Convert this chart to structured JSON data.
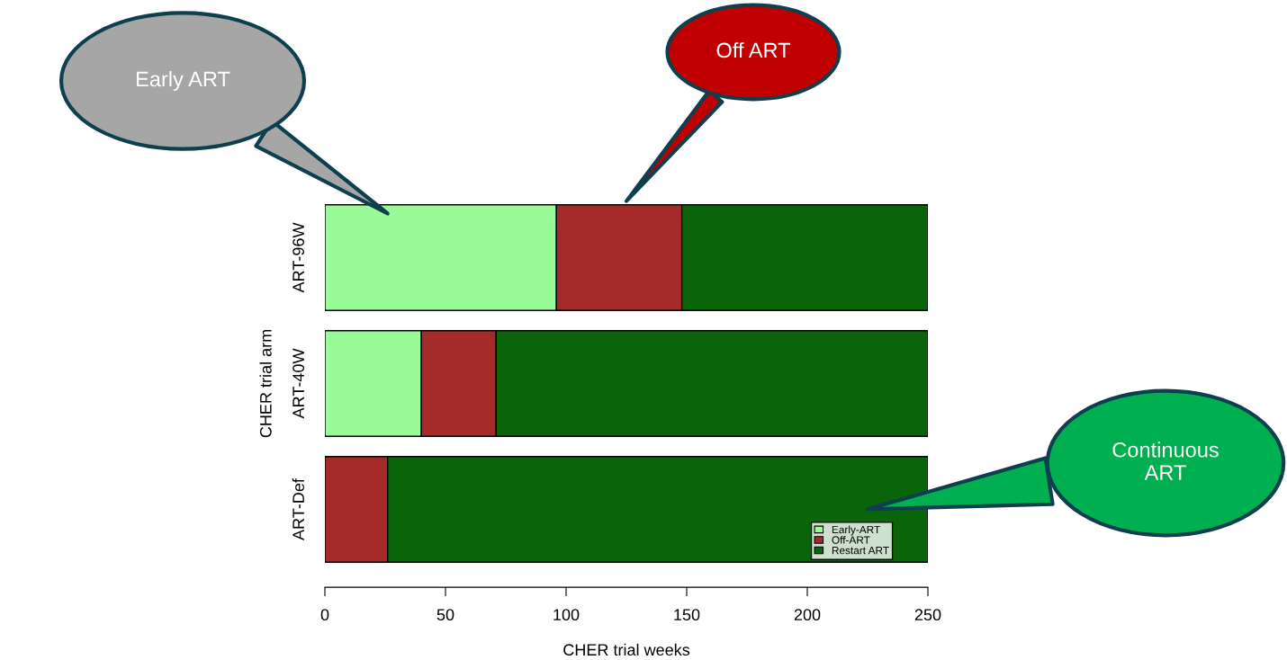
{
  "chart_data": {
    "type": "bar",
    "orientation": "horizontal",
    "stacked": true,
    "xlabel": "CHER trial weeks",
    "ylabel": "CHER trial arm",
    "categories": [
      "ART-96W",
      "ART-40W",
      "ART-Def"
    ],
    "series": [
      {
        "name": "Early-ART",
        "color": "#98fb98",
        "values": [
          96,
          40,
          0
        ]
      },
      {
        "name": "Off-ART",
        "color": "#a52a2a",
        "values": [
          52,
          31,
          26
        ]
      },
      {
        "name": "Restart ART",
        "color": "#0a640a",
        "values": [
          102,
          179,
          224
        ]
      }
    ],
    "xlim": [
      0,
      250
    ],
    "xticks": [
      0,
      50,
      100,
      150,
      200,
      250
    ],
    "grid": false,
    "legend": "bottom right",
    "annotations": [
      "Early ART",
      "Off ART",
      "Continuous ART"
    ]
  }
}
